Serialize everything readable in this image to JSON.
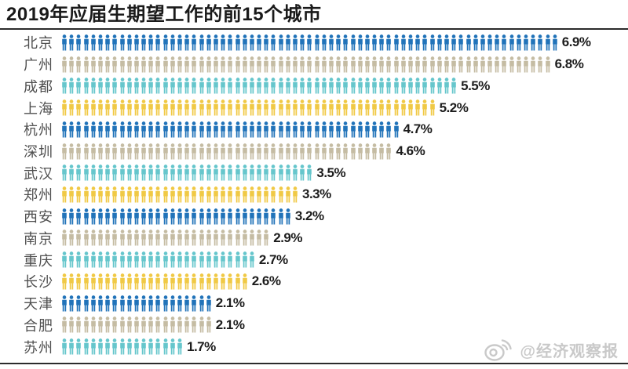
{
  "title": "2019年应届生期望工作的前15个城市",
  "watermark": {
    "text": "@经济观察报",
    "logo": "weibo-icon"
  },
  "chart_data": {
    "type": "bar",
    "variant": "pictogram",
    "orientation": "horizontal",
    "title": "2019年应届生期望工作的前15个城市",
    "xlabel": "",
    "ylabel": "",
    "unit": "%",
    "icon": "person-icon",
    "icon_value_percent": 0.1,
    "categories": [
      "北京",
      "广州",
      "成都",
      "上海",
      "杭州",
      "深圳",
      "武汉",
      "郑州",
      "西安",
      "南京",
      "重庆",
      "长沙",
      "天津",
      "合肥",
      "苏州"
    ],
    "values": [
      6.9,
      6.8,
      5.5,
      5.2,
      4.7,
      4.6,
      3.5,
      3.3,
      3.2,
      2.9,
      2.7,
      2.6,
      2.1,
      2.1,
      1.7
    ],
    "labels": [
      "6.9%",
      "6.8%",
      "5.5%",
      "5.2%",
      "4.7%",
      "4.6%",
      "3.5%",
      "3.3%",
      "3.2%",
      "2.9%",
      "2.7%",
      "2.6%",
      "2.1%",
      "2.1%",
      "1.7%"
    ],
    "palette": [
      "#2173b9",
      "#c5bca3",
      "#66c6cc",
      "#f0c945"
    ],
    "xlim": [
      0,
      7
    ],
    "grid": false,
    "legend": false
  },
  "colors": {
    "title": "#1a1a1a",
    "rule": "#2b2b2b",
    "city_label": "#4f4f4f",
    "value_label": "#1c1c1c",
    "watermark": "#c9c9c9",
    "background": "#ffffff"
  }
}
